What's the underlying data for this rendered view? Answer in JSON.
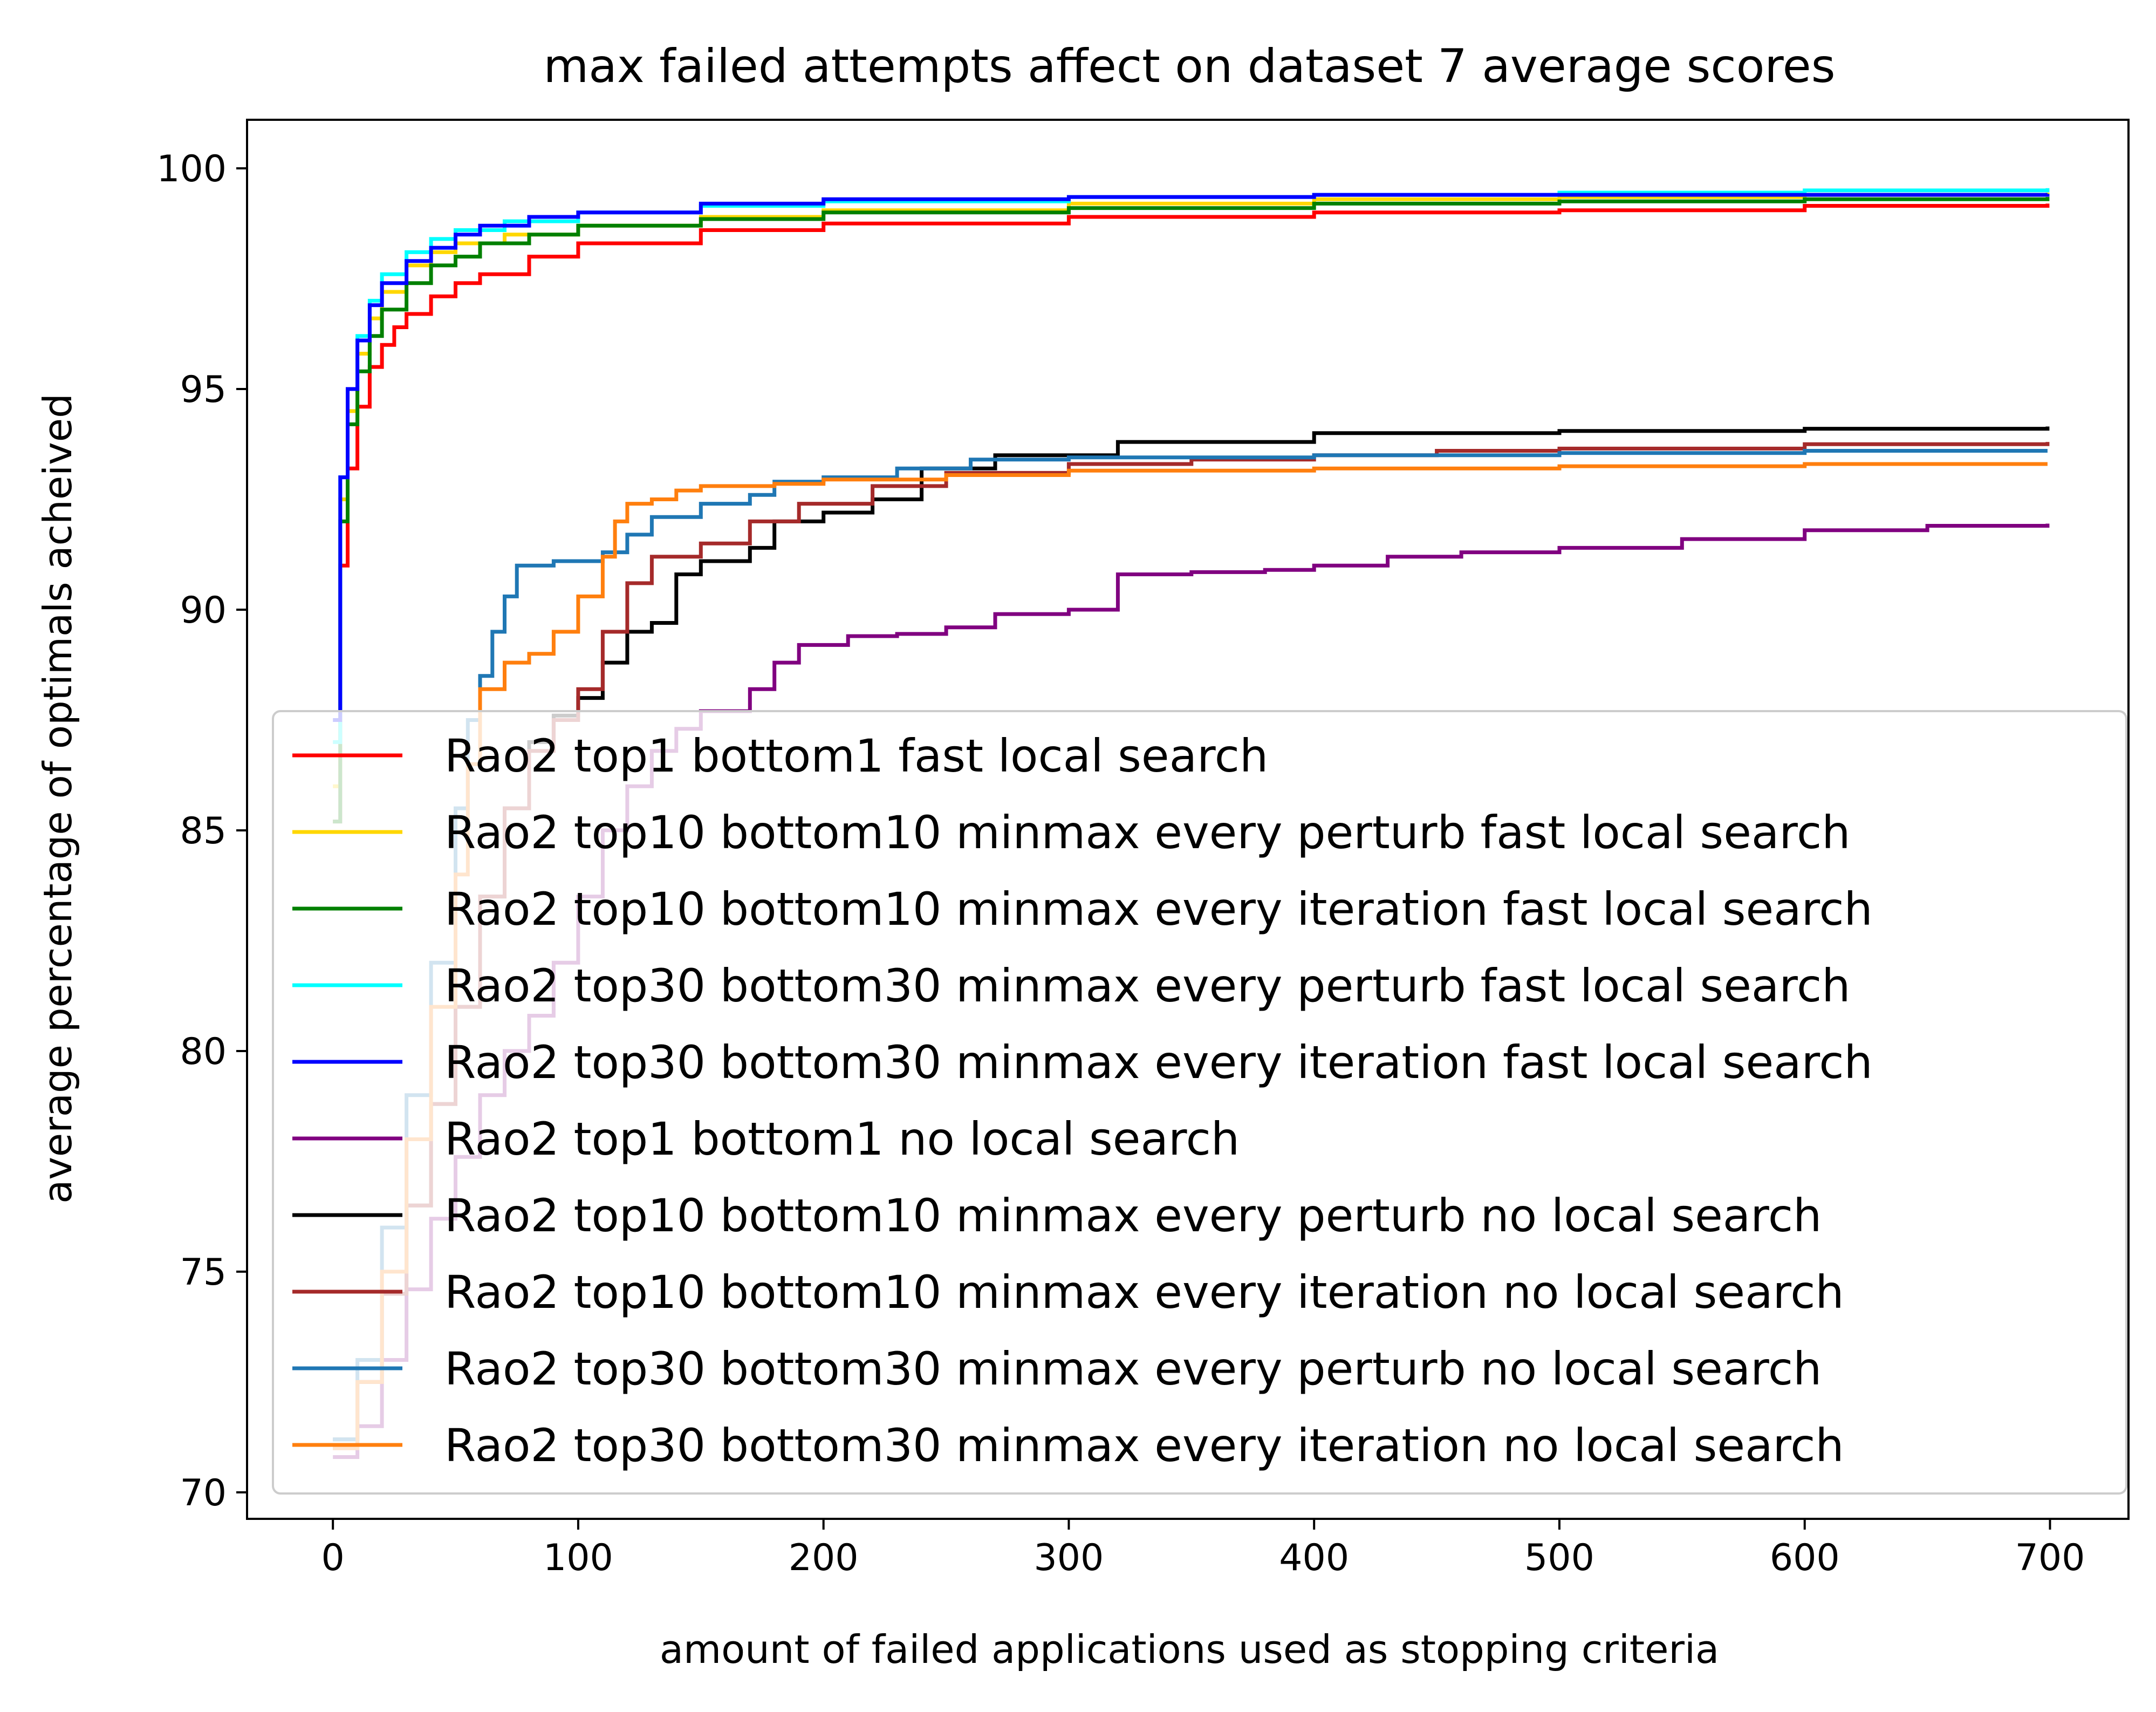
{
  "chart_data": {
    "type": "line",
    "title": "max failed attempts affect on dataset 7 average scores",
    "xlabel": "amount of failed applications used as stopping criteria",
    "ylabel": "average percentage of optimals acheived",
    "xlim": [
      -35,
      732
    ],
    "ylim": [
      69.4,
      101.1
    ],
    "xticks": [
      0,
      100,
      200,
      300,
      400,
      500,
      600,
      700
    ],
    "yticks": [
      70,
      75,
      80,
      85,
      90,
      95,
      100
    ],
    "xtick_labels": [
      "0",
      "100",
      "200",
      "300",
      "400",
      "500",
      "600",
      "700"
    ],
    "ytick_labels": [
      "70",
      "75",
      "80",
      "85",
      "90",
      "95",
      "100"
    ],
    "grid": false,
    "legend_position": "lower-right",
    "series": [
      {
        "name": "Rao2 top1 bottom1 fast local search",
        "color": "#ff0000",
        "points": [
          [
            0,
            85.2
          ],
          [
            3,
            91
          ],
          [
            6,
            93.2
          ],
          [
            10,
            94.6
          ],
          [
            15,
            95.5
          ],
          [
            20,
            96
          ],
          [
            25,
            96.4
          ],
          [
            30,
            96.7
          ],
          [
            40,
            97.1
          ],
          [
            50,
            97.4
          ],
          [
            60,
            97.6
          ],
          [
            80,
            98.0
          ],
          [
            100,
            98.3
          ],
          [
            150,
            98.6
          ],
          [
            200,
            98.75
          ],
          [
            300,
            98.9
          ],
          [
            400,
            99.0
          ],
          [
            500,
            99.05
          ],
          [
            600,
            99.15
          ],
          [
            699,
            99.2
          ]
        ]
      },
      {
        "name": "Rao2 top10 bottom10 minmax every perturb fast local search",
        "color": "#ffd700",
        "points": [
          [
            0,
            86
          ],
          [
            3,
            92.5
          ],
          [
            6,
            94.5
          ],
          [
            10,
            95.8
          ],
          [
            15,
            96.6
          ],
          [
            20,
            97.2
          ],
          [
            30,
            97.8
          ],
          [
            40,
            98.1
          ],
          [
            50,
            98.3
          ],
          [
            70,
            98.5
          ],
          [
            100,
            98.7
          ],
          [
            150,
            98.9
          ],
          [
            200,
            99.05
          ],
          [
            300,
            99.2
          ],
          [
            400,
            99.3
          ],
          [
            500,
            99.35
          ],
          [
            600,
            99.4
          ],
          [
            699,
            99.45
          ]
        ]
      },
      {
        "name": "Rao2 top10 bottom10 minmax every iteration fast local search",
        "color": "#008000",
        "points": [
          [
            0,
            85.2
          ],
          [
            3,
            92
          ],
          [
            6,
            94.2
          ],
          [
            10,
            95.4
          ],
          [
            15,
            96.2
          ],
          [
            20,
            96.8
          ],
          [
            30,
            97.4
          ],
          [
            40,
            97.8
          ],
          [
            50,
            98.0
          ],
          [
            60,
            98.3
          ],
          [
            80,
            98.5
          ],
          [
            100,
            98.7
          ],
          [
            150,
            98.85
          ],
          [
            200,
            99.0
          ],
          [
            300,
            99.1
          ],
          [
            400,
            99.2
          ],
          [
            500,
            99.25
          ],
          [
            600,
            99.3
          ],
          [
            699,
            99.35
          ]
        ]
      },
      {
        "name": "Rao2 top30 bottom30 minmax every perturb fast local search",
        "color": "#00ffff",
        "points": [
          [
            0,
            87
          ],
          [
            3,
            93
          ],
          [
            6,
            95
          ],
          [
            10,
            96.2
          ],
          [
            15,
            97
          ],
          [
            20,
            97.6
          ],
          [
            30,
            98.1
          ],
          [
            40,
            98.4
          ],
          [
            50,
            98.6
          ],
          [
            70,
            98.8
          ],
          [
            100,
            99.0
          ],
          [
            150,
            99.15
          ],
          [
            200,
            99.25
          ],
          [
            300,
            99.35
          ],
          [
            400,
            99.4
          ],
          [
            500,
            99.45
          ],
          [
            600,
            99.5
          ],
          [
            699,
            99.55
          ]
        ]
      },
      {
        "name": "Rao2 top30 bottom30 minmax every iteration fast local search",
        "color": "#0000ff",
        "points": [
          [
            0,
            87.5
          ],
          [
            3,
            93
          ],
          [
            6,
            95
          ],
          [
            10,
            96.1
          ],
          [
            15,
            96.9
          ],
          [
            20,
            97.4
          ],
          [
            30,
            97.9
          ],
          [
            40,
            98.2
          ],
          [
            50,
            98.5
          ],
          [
            60,
            98.7
          ],
          [
            80,
            98.9
          ],
          [
            100,
            99.0
          ],
          [
            150,
            99.2
          ],
          [
            200,
            99.3
          ],
          [
            300,
            99.35
          ],
          [
            400,
            99.4
          ],
          [
            500,
            99.4
          ],
          [
            600,
            99.4
          ],
          [
            699,
            99.42
          ]
        ]
      },
      {
        "name": "Rao2 top1 bottom1 no local search",
        "color": "#800080",
        "points": [
          [
            0,
            70.8
          ],
          [
            10,
            71.5
          ],
          [
            20,
            73
          ],
          [
            30,
            74.6
          ],
          [
            40,
            76.2
          ],
          [
            50,
            77.6
          ],
          [
            60,
            79
          ],
          [
            70,
            80
          ],
          [
            80,
            80.8
          ],
          [
            90,
            82
          ],
          [
            100,
            83.5
          ],
          [
            110,
            85
          ],
          [
            120,
            86
          ],
          [
            130,
            86.8
          ],
          [
            140,
            87.3
          ],
          [
            150,
            87.7
          ],
          [
            170,
            88.2
          ],
          [
            180,
            88.8
          ],
          [
            190,
            89.2
          ],
          [
            210,
            89.4
          ],
          [
            230,
            89.45
          ],
          [
            250,
            89.6
          ],
          [
            270,
            89.9
          ],
          [
            300,
            90.0
          ],
          [
            320,
            90.8
          ],
          [
            350,
            90.85
          ],
          [
            380,
            90.9
          ],
          [
            400,
            91.0
          ],
          [
            430,
            91.2
          ],
          [
            460,
            91.3
          ],
          [
            500,
            91.4
          ],
          [
            550,
            91.6
          ],
          [
            600,
            91.8
          ],
          [
            650,
            91.9
          ],
          [
            699,
            91.95
          ]
        ]
      },
      {
        "name": "Rao2 top10 bottom10 minmax every perturb no local search",
        "color": "#000000",
        "points": [
          [
            0,
            71.2
          ],
          [
            10,
            72.5
          ],
          [
            20,
            74.5
          ],
          [
            30,
            76.5
          ],
          [
            40,
            78.8
          ],
          [
            50,
            81
          ],
          [
            60,
            83.5
          ],
          [
            70,
            85.5
          ],
          [
            80,
            87
          ],
          [
            90,
            87.6
          ],
          [
            100,
            88
          ],
          [
            110,
            88.8
          ],
          [
            120,
            89.5
          ],
          [
            130,
            89.7
          ],
          [
            140,
            90.8
          ],
          [
            150,
            91.1
          ],
          [
            170,
            91.4
          ],
          [
            180,
            92.0
          ],
          [
            200,
            92.2
          ],
          [
            220,
            92.5
          ],
          [
            240,
            93.2
          ],
          [
            270,
            93.5
          ],
          [
            320,
            93.8
          ],
          [
            400,
            94.0
          ],
          [
            500,
            94.05
          ],
          [
            600,
            94.1
          ],
          [
            699,
            94.15
          ]
        ]
      },
      {
        "name": "Rao2 top10 bottom10 minmax every iteration no local search",
        "color": "#a52a2a",
        "points": [
          [
            0,
            71
          ],
          [
            10,
            72.5
          ],
          [
            20,
            74.5
          ],
          [
            30,
            76.5
          ],
          [
            40,
            78.8
          ],
          [
            50,
            81
          ],
          [
            60,
            83.5
          ],
          [
            70,
            85.5
          ],
          [
            80,
            86.8
          ],
          [
            90,
            87.5
          ],
          [
            100,
            88.2
          ],
          [
            110,
            89.5
          ],
          [
            120,
            90.6
          ],
          [
            130,
            91.2
          ],
          [
            150,
            91.5
          ],
          [
            170,
            92
          ],
          [
            190,
            92.4
          ],
          [
            220,
            92.8
          ],
          [
            250,
            93.1
          ],
          [
            300,
            93.3
          ],
          [
            350,
            93.4
          ],
          [
            400,
            93.5
          ],
          [
            450,
            93.6
          ],
          [
            500,
            93.65
          ],
          [
            600,
            93.75
          ],
          [
            699,
            93.8
          ]
        ]
      },
      {
        "name": "Rao2 top30 bottom30 minmax every perturb no local search",
        "color": "#1f77b4",
        "points": [
          [
            0,
            71.2
          ],
          [
            10,
            73
          ],
          [
            20,
            76
          ],
          [
            30,
            79
          ],
          [
            40,
            82
          ],
          [
            50,
            85.5
          ],
          [
            55,
            87.5
          ],
          [
            60,
            88.5
          ],
          [
            65,
            89.5
          ],
          [
            70,
            90.3
          ],
          [
            75,
            91.0
          ],
          [
            90,
            91.1
          ],
          [
            110,
            91.3
          ],
          [
            120,
            91.7
          ],
          [
            130,
            92.1
          ],
          [
            150,
            92.4
          ],
          [
            170,
            92.6
          ],
          [
            180,
            92.9
          ],
          [
            200,
            93.0
          ],
          [
            230,
            93.2
          ],
          [
            260,
            93.4
          ],
          [
            300,
            93.45
          ],
          [
            400,
            93.5
          ],
          [
            500,
            93.55
          ],
          [
            600,
            93.6
          ],
          [
            699,
            93.6
          ]
        ]
      },
      {
        "name": "Rao2 top30 bottom30 minmax every iteration no local search",
        "color": "#ff7f0e",
        "points": [
          [
            0,
            71
          ],
          [
            10,
            72.5
          ],
          [
            20,
            75
          ],
          [
            30,
            78
          ],
          [
            40,
            81
          ],
          [
            50,
            84
          ],
          [
            55,
            86.5
          ],
          [
            60,
            88.2
          ],
          [
            70,
            88.8
          ],
          [
            80,
            89.0
          ],
          [
            90,
            89.5
          ],
          [
            100,
            90.3
          ],
          [
            110,
            91.2
          ],
          [
            115,
            92.0
          ],
          [
            120,
            92.4
          ],
          [
            130,
            92.5
          ],
          [
            140,
            92.7
          ],
          [
            150,
            92.8
          ],
          [
            180,
            92.85
          ],
          [
            200,
            92.95
          ],
          [
            250,
            93.05
          ],
          [
            300,
            93.15
          ],
          [
            400,
            93.2
          ],
          [
            500,
            93.25
          ],
          [
            600,
            93.3
          ],
          [
            699,
            93.3
          ]
        ]
      }
    ]
  }
}
